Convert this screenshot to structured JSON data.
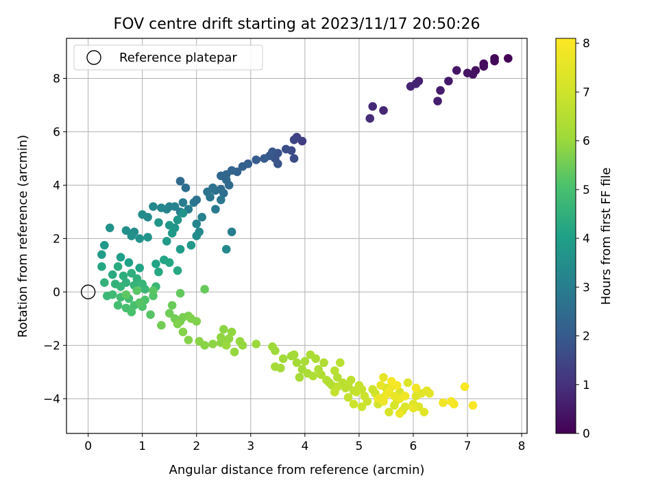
{
  "chart_data": {
    "type": "scatter",
    "title": "FOV centre drift starting at 2023/11/17 20:50:26",
    "xlabel": "Angular distance from reference (arcmin)",
    "ylabel": "Rotation from reference (arcmin)",
    "xlim": [
      -0.4,
      8.1
    ],
    "ylim": [
      -5.3,
      9.5
    ],
    "xticks": [
      0,
      1,
      2,
      3,
      4,
      5,
      6,
      7,
      8
    ],
    "yticks": [
      -4,
      -2,
      0,
      2,
      4,
      6,
      8
    ],
    "grid": true,
    "legend": {
      "location": "upper-left",
      "entries": [
        "Reference platepar"
      ]
    },
    "reference_point": {
      "x": 0,
      "y": 0,
      "marker": "open-circle"
    },
    "colorbar": {
      "label": "Hours from first FF file",
      "min": 0,
      "max": 8.1,
      "ticks": [
        0,
        1,
        2,
        3,
        4,
        5,
        6,
        7,
        8
      ],
      "colormap": "viridis"
    },
    "point_keys": [
      "x",
      "y",
      "hours"
    ],
    "points": [
      [
        7.75,
        8.75,
        0.05
      ],
      [
        7.5,
        8.75,
        0.1
      ],
      [
        7.5,
        8.65,
        0.15
      ],
      [
        7.3,
        8.55,
        0.2
      ],
      [
        7.3,
        8.45,
        0.25
      ],
      [
        7.15,
        8.3,
        0.3
      ],
      [
        7.1,
        8.15,
        0.35
      ],
      [
        7.0,
        8.2,
        0.4
      ],
      [
        6.8,
        8.3,
        0.45
      ],
      [
        6.65,
        7.9,
        0.5
      ],
      [
        6.5,
        7.55,
        0.55
      ],
      [
        6.45,
        7.15,
        0.6
      ],
      [
        6.1,
        7.9,
        0.65
      ],
      [
        6.05,
        7.8,
        0.7
      ],
      [
        5.95,
        7.7,
        0.75
      ],
      [
        5.45,
        6.8,
        0.8
      ],
      [
        5.25,
        6.95,
        0.85
      ],
      [
        5.2,
        6.5,
        0.9
      ],
      [
        3.95,
        5.65,
        1.3
      ],
      [
        3.85,
        5.8,
        1.4
      ],
      [
        3.8,
        5.7,
        1.5
      ],
      [
        3.75,
        5.3,
        1.6
      ],
      [
        3.8,
        5.0,
        1.65
      ],
      [
        3.65,
        5.35,
        1.7
      ],
      [
        3.5,
        5.2,
        1.75
      ],
      [
        3.45,
        5.0,
        1.8
      ],
      [
        3.5,
        4.8,
        1.85
      ],
      [
        3.4,
        5.25,
        1.9
      ],
      [
        3.35,
        5.1,
        1.95
      ],
      [
        3.25,
        5.0,
        2.0
      ],
      [
        3.1,
        4.95,
        2.05
      ],
      [
        2.95,
        4.8,
        2.1
      ],
      [
        2.85,
        4.7,
        2.15
      ],
      [
        2.75,
        4.5,
        2.2
      ],
      [
        2.65,
        4.55,
        2.25
      ],
      [
        2.55,
        4.4,
        2.3
      ],
      [
        2.45,
        4.35,
        2.35
      ],
      [
        2.55,
        4.2,
        2.4
      ],
      [
        2.6,
        4.0,
        2.45
      ],
      [
        2.45,
        3.85,
        2.5
      ],
      [
        2.5,
        3.7,
        2.55
      ],
      [
        2.35,
        3.8,
        2.6
      ],
      [
        2.3,
        3.9,
        2.65
      ],
      [
        2.2,
        3.75,
        2.7
      ],
      [
        2.25,
        3.55,
        2.75
      ],
      [
        2.45,
        3.45,
        2.8
      ],
      [
        2.35,
        3.1,
        2.85
      ],
      [
        1.95,
        3.35,
        2.9
      ],
      [
        1.75,
        3.35,
        2.95
      ],
      [
        1.85,
        3.1,
        3.0
      ],
      [
        1.7,
        3.0,
        3.05
      ],
      [
        1.6,
        3.2,
        3.1
      ],
      [
        1.5,
        3.2,
        3.15
      ],
      [
        1.45,
        3.1,
        3.2
      ],
      [
        1.35,
        3.15,
        3.25
      ],
      [
        1.2,
        3.2,
        3.3
      ],
      [
        1.1,
        2.8,
        3.35
      ],
      [
        1.0,
        2.9,
        3.4
      ],
      [
        0.85,
        2.25,
        3.45
      ],
      [
        0.7,
        2.3,
        3.5
      ],
      [
        0.8,
        2.1,
        3.55
      ],
      [
        0.95,
        2.0,
        3.6
      ],
      [
        1.1,
        2.05,
        3.65
      ],
      [
        1.3,
        2.6,
        3.7
      ],
      [
        1.5,
        2.5,
        3.75
      ],
      [
        1.6,
        2.4,
        3.75
      ],
      [
        1.55,
        2.2,
        3.8
      ],
      [
        1.45,
        1.9,
        3.85
      ],
      [
        1.7,
        1.6,
        3.85
      ],
      [
        1.9,
        1.75,
        3.85
      ],
      [
        1.65,
        2.7,
        3.7
      ],
      [
        1.75,
        2.95,
        3.6
      ],
      [
        1.7,
        4.15,
        2.45
      ],
      [
        1.8,
        3.9,
        2.55
      ],
      [
        2.0,
        3.45,
        2.65
      ],
      [
        2.0,
        2.55,
        3.2
      ],
      [
        2.05,
        2.25,
        3.3
      ],
      [
        2.0,
        2.1,
        3.4
      ],
      [
        2.1,
        2.8,
        3.1
      ],
      [
        2.65,
        2.25,
        3.0
      ],
      [
        2.55,
        1.6,
        3.35
      ],
      [
        0.4,
        2.4,
        3.6
      ],
      [
        0.3,
        1.75,
        3.8
      ],
      [
        0.25,
        1.4,
        3.9
      ],
      [
        0.6,
        1.3,
        4.0
      ],
      [
        0.75,
        1.1,
        4.05
      ],
      [
        0.95,
        0.9,
        4.1
      ],
      [
        1.25,
        1.05,
        4.1
      ],
      [
        1.4,
        1.2,
        4.15
      ],
      [
        1.5,
        1.1,
        4.2
      ],
      [
        1.3,
        0.75,
        4.25
      ],
      [
        1.65,
        0.8,
        4.25
      ],
      [
        0.25,
        0.95,
        4.2
      ],
      [
        0.45,
        0.65,
        4.3
      ],
      [
        0.55,
        0.95,
        4.35
      ],
      [
        0.65,
        0.6,
        4.4
      ],
      [
        0.8,
        0.7,
        4.45
      ],
      [
        0.9,
        0.5,
        4.5
      ],
      [
        0.7,
        0.35,
        4.5
      ],
      [
        0.5,
        0.3,
        4.55
      ],
      [
        0.3,
        0.35,
        4.55
      ],
      [
        0.6,
        0.2,
        4.6
      ],
      [
        0.85,
        0.25,
        4.6
      ],
      [
        1.0,
        0.3,
        4.65
      ],
      [
        1.05,
        0.1,
        4.7
      ],
      [
        1.25,
        0.2,
        4.7
      ],
      [
        0.35,
        -0.15,
        4.75
      ],
      [
        0.45,
        -0.1,
        4.8
      ],
      [
        0.6,
        -0.2,
        4.85
      ],
      [
        0.75,
        -0.25,
        4.9
      ],
      [
        0.55,
        -0.5,
        4.95
      ],
      [
        0.7,
        -0.6,
        5.0
      ],
      [
        0.85,
        -0.5,
        5.0
      ],
      [
        0.8,
        -0.75,
        5.05
      ],
      [
        1.0,
        -0.55,
        5.1
      ],
      [
        1.05,
        -0.3,
        5.1
      ],
      [
        1.2,
        -0.15,
        5.15
      ],
      [
        1.15,
        -0.85,
        5.2
      ],
      [
        0.95,
        -0.4,
        5.2
      ],
      [
        1.2,
        0.05,
        5.25
      ],
      [
        0.9,
        0.05,
        5.25
      ],
      [
        0.7,
        -0.1,
        5.3
      ],
      [
        1.7,
        -0.05,
        5.35
      ],
      [
        2.15,
        0.1,
        5.4
      ],
      [
        1.55,
        -0.5,
        5.45
      ],
      [
        1.5,
        -0.8,
        5.5
      ],
      [
        1.35,
        -1.25,
        5.55
      ],
      [
        1.6,
        -1.0,
        5.55
      ],
      [
        1.7,
        -1.1,
        5.6
      ],
      [
        1.75,
        -0.95,
        5.6
      ],
      [
        1.85,
        -0.9,
        5.65
      ],
      [
        2.0,
        -1.1,
        5.7
      ],
      [
        1.9,
        -1.0,
        5.7
      ],
      [
        1.65,
        -1.2,
        5.7
      ],
      [
        1.75,
        -1.5,
        5.75
      ],
      [
        1.85,
        -1.8,
        5.75
      ],
      [
        2.05,
        -1.85,
        5.8
      ],
      [
        2.15,
        -2.0,
        5.8
      ],
      [
        2.3,
        -1.95,
        5.85
      ],
      [
        2.45,
        -1.9,
        5.85
      ],
      [
        2.5,
        -1.4,
        5.85
      ],
      [
        2.55,
        -1.85,
        5.9
      ],
      [
        2.45,
        -1.7,
        5.9
      ],
      [
        2.6,
        -1.75,
        5.9
      ],
      [
        2.65,
        -1.5,
        5.9
      ],
      [
        2.8,
        -1.85,
        5.95
      ],
      [
        2.85,
        -2.0,
        5.95
      ],
      [
        2.7,
        -2.25,
        5.95
      ],
      [
        2.55,
        -2.0,
        6.0
      ],
      [
        3.1,
        -1.95,
        6.0
      ],
      [
        3.4,
        -2.05,
        6.05
      ],
      [
        3.45,
        -2.2,
        6.05
      ],
      [
        3.6,
        -2.5,
        6.1
      ],
      [
        3.75,
        -2.4,
        6.1
      ],
      [
        3.8,
        -2.35,
        6.15
      ],
      [
        3.45,
        -2.8,
        6.15
      ],
      [
        3.55,
        -2.85,
        6.15
      ],
      [
        3.85,
        -2.65,
        6.2
      ],
      [
        3.95,
        -2.9,
        6.2
      ],
      [
        3.9,
        -3.2,
        6.2
      ],
      [
        4.0,
        -2.6,
        6.25
      ],
      [
        4.1,
        -2.35,
        6.3
      ],
      [
        4.2,
        -2.5,
        6.3
      ],
      [
        4.05,
        -3.05,
        6.3
      ],
      [
        4.15,
        -3.15,
        6.35
      ],
      [
        4.25,
        -2.9,
        6.35
      ],
      [
        4.3,
        -3.1,
        6.4
      ],
      [
        4.35,
        -2.65,
        6.4
      ],
      [
        4.4,
        -3.3,
        6.45
      ],
      [
        4.5,
        -3.5,
        6.45
      ],
      [
        4.45,
        -3.4,
        6.5
      ],
      [
        4.6,
        -3.2,
        6.5
      ],
      [
        4.55,
        -2.95,
        6.55
      ],
      [
        4.65,
        -2.65,
        6.55
      ],
      [
        4.7,
        -3.4,
        6.6
      ],
      [
        4.75,
        -3.6,
        6.6
      ],
      [
        4.8,
        -3.5,
        6.65
      ],
      [
        4.85,
        -3.3,
        6.65
      ],
      [
        4.9,
        -3.7,
        6.7
      ],
      [
        4.6,
        -3.55,
        6.7
      ],
      [
        4.55,
        -3.75,
        6.75
      ],
      [
        4.8,
        -3.95,
        6.75
      ],
      [
        4.95,
        -3.75,
        6.8
      ],
      [
        5.0,
        -3.5,
        6.8
      ],
      [
        5.05,
        -3.65,
        6.85
      ],
      [
        5.1,
        -3.9,
        6.9
      ],
      [
        5.15,
        -4.1,
        6.9
      ],
      [
        5.05,
        -4.3,
        6.95
      ],
      [
        4.9,
        -4.2,
        6.95
      ],
      [
        5.25,
        -3.65,
        7.0
      ],
      [
        5.3,
        -3.8,
        7.0
      ],
      [
        5.35,
        -4.2,
        7.05
      ],
      [
        5.45,
        -3.95,
        7.1
      ],
      [
        5.5,
        -3.6,
        7.1
      ],
      [
        5.55,
        -4.5,
        7.15
      ],
      [
        5.65,
        -4.25,
        7.15
      ],
      [
        5.7,
        -4.05,
        7.2
      ],
      [
        5.75,
        -3.75,
        7.2
      ],
      [
        5.8,
        -4.45,
        7.25
      ],
      [
        5.85,
        -4.3,
        7.25
      ],
      [
        5.9,
        -3.4,
        7.3
      ],
      [
        6.0,
        -4.2,
        7.3
      ],
      [
        6.05,
        -3.9,
        7.35
      ],
      [
        6.1,
        -4.3,
        7.35
      ],
      [
        6.2,
        -4.5,
        7.4
      ],
      [
        6.15,
        -3.8,
        7.4
      ],
      [
        6.25,
        -3.7,
        7.45
      ],
      [
        6.3,
        -3.8,
        7.5
      ],
      [
        5.45,
        -3.2,
        7.55
      ],
      [
        5.4,
        -3.5,
        7.6
      ],
      [
        5.6,
        -3.55,
        7.6
      ],
      [
        5.65,
        -3.9,
        7.65
      ],
      [
        5.75,
        -4.0,
        7.65
      ],
      [
        5.45,
        -4.1,
        7.7
      ],
      [
        5.35,
        -4.0,
        7.7
      ],
      [
        5.55,
        -3.7,
        7.75
      ],
      [
        5.5,
        -3.85,
        7.75
      ],
      [
        5.85,
        -3.9,
        7.8
      ],
      [
        6.55,
        -4.15,
        7.8
      ],
      [
        6.7,
        -4.1,
        7.85
      ],
      [
        6.75,
        -4.2,
        7.9
      ],
      [
        6.95,
        -3.55,
        7.95
      ],
      [
        7.1,
        -4.25,
        8.0
      ],
      [
        6.05,
        -3.6,
        7.85
      ],
      [
        5.7,
        -3.5,
        7.9
      ],
      [
        5.6,
        -3.35,
        7.95
      ],
      [
        5.75,
        -4.55,
        7.7
      ],
      [
        6.0,
        -4.35,
        7.6
      ]
    ]
  }
}
